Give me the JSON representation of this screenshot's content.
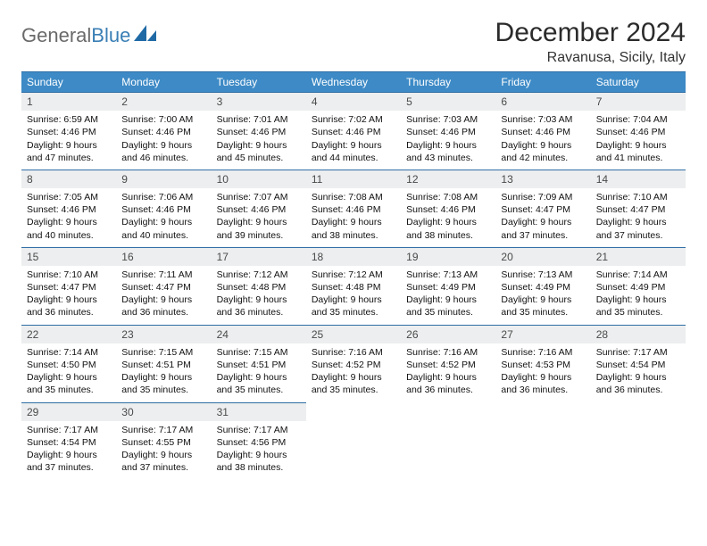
{
  "brand": {
    "word1": "General",
    "word2": "Blue"
  },
  "title": "December 2024",
  "location": "Ravanusa, Sicily, Italy",
  "colors": {
    "header_bg": "#3d8ac6",
    "header_text": "#ffffff",
    "daynum_bg": "#eceeef",
    "divider": "#2f6ea5",
    "logo_gray": "#6a6a6a",
    "logo_blue": "#3a7fb5"
  },
  "typography": {
    "title_fontsize": 30,
    "location_fontsize": 16,
    "dayhead_fontsize": 12,
    "cell_fontsize": 10.5
  },
  "day_headers": [
    "Sunday",
    "Monday",
    "Tuesday",
    "Wednesday",
    "Thursday",
    "Friday",
    "Saturday"
  ],
  "days": [
    {
      "n": "1",
      "sunrise": "Sunrise: 6:59 AM",
      "sunset": "Sunset: 4:46 PM",
      "day1": "Daylight: 9 hours",
      "day2": "and 47 minutes."
    },
    {
      "n": "2",
      "sunrise": "Sunrise: 7:00 AM",
      "sunset": "Sunset: 4:46 PM",
      "day1": "Daylight: 9 hours",
      "day2": "and 46 minutes."
    },
    {
      "n": "3",
      "sunrise": "Sunrise: 7:01 AM",
      "sunset": "Sunset: 4:46 PM",
      "day1": "Daylight: 9 hours",
      "day2": "and 45 minutes."
    },
    {
      "n": "4",
      "sunrise": "Sunrise: 7:02 AM",
      "sunset": "Sunset: 4:46 PM",
      "day1": "Daylight: 9 hours",
      "day2": "and 44 minutes."
    },
    {
      "n": "5",
      "sunrise": "Sunrise: 7:03 AM",
      "sunset": "Sunset: 4:46 PM",
      "day1": "Daylight: 9 hours",
      "day2": "and 43 minutes."
    },
    {
      "n": "6",
      "sunrise": "Sunrise: 7:03 AM",
      "sunset": "Sunset: 4:46 PM",
      "day1": "Daylight: 9 hours",
      "day2": "and 42 minutes."
    },
    {
      "n": "7",
      "sunrise": "Sunrise: 7:04 AM",
      "sunset": "Sunset: 4:46 PM",
      "day1": "Daylight: 9 hours",
      "day2": "and 41 minutes."
    },
    {
      "n": "8",
      "sunrise": "Sunrise: 7:05 AM",
      "sunset": "Sunset: 4:46 PM",
      "day1": "Daylight: 9 hours",
      "day2": "and 40 minutes."
    },
    {
      "n": "9",
      "sunrise": "Sunrise: 7:06 AM",
      "sunset": "Sunset: 4:46 PM",
      "day1": "Daylight: 9 hours",
      "day2": "and 40 minutes."
    },
    {
      "n": "10",
      "sunrise": "Sunrise: 7:07 AM",
      "sunset": "Sunset: 4:46 PM",
      "day1": "Daylight: 9 hours",
      "day2": "and 39 minutes."
    },
    {
      "n": "11",
      "sunrise": "Sunrise: 7:08 AM",
      "sunset": "Sunset: 4:46 PM",
      "day1": "Daylight: 9 hours",
      "day2": "and 38 minutes."
    },
    {
      "n": "12",
      "sunrise": "Sunrise: 7:08 AM",
      "sunset": "Sunset: 4:46 PM",
      "day1": "Daylight: 9 hours",
      "day2": "and 38 minutes."
    },
    {
      "n": "13",
      "sunrise": "Sunrise: 7:09 AM",
      "sunset": "Sunset: 4:47 PM",
      "day1": "Daylight: 9 hours",
      "day2": "and 37 minutes."
    },
    {
      "n": "14",
      "sunrise": "Sunrise: 7:10 AM",
      "sunset": "Sunset: 4:47 PM",
      "day1": "Daylight: 9 hours",
      "day2": "and 37 minutes."
    },
    {
      "n": "15",
      "sunrise": "Sunrise: 7:10 AM",
      "sunset": "Sunset: 4:47 PM",
      "day1": "Daylight: 9 hours",
      "day2": "and 36 minutes."
    },
    {
      "n": "16",
      "sunrise": "Sunrise: 7:11 AM",
      "sunset": "Sunset: 4:47 PM",
      "day1": "Daylight: 9 hours",
      "day2": "and 36 minutes."
    },
    {
      "n": "17",
      "sunrise": "Sunrise: 7:12 AM",
      "sunset": "Sunset: 4:48 PM",
      "day1": "Daylight: 9 hours",
      "day2": "and 36 minutes."
    },
    {
      "n": "18",
      "sunrise": "Sunrise: 7:12 AM",
      "sunset": "Sunset: 4:48 PM",
      "day1": "Daylight: 9 hours",
      "day2": "and 35 minutes."
    },
    {
      "n": "19",
      "sunrise": "Sunrise: 7:13 AM",
      "sunset": "Sunset: 4:49 PM",
      "day1": "Daylight: 9 hours",
      "day2": "and 35 minutes."
    },
    {
      "n": "20",
      "sunrise": "Sunrise: 7:13 AM",
      "sunset": "Sunset: 4:49 PM",
      "day1": "Daylight: 9 hours",
      "day2": "and 35 minutes."
    },
    {
      "n": "21",
      "sunrise": "Sunrise: 7:14 AM",
      "sunset": "Sunset: 4:49 PM",
      "day1": "Daylight: 9 hours",
      "day2": "and 35 minutes."
    },
    {
      "n": "22",
      "sunrise": "Sunrise: 7:14 AM",
      "sunset": "Sunset: 4:50 PM",
      "day1": "Daylight: 9 hours",
      "day2": "and 35 minutes."
    },
    {
      "n": "23",
      "sunrise": "Sunrise: 7:15 AM",
      "sunset": "Sunset: 4:51 PM",
      "day1": "Daylight: 9 hours",
      "day2": "and 35 minutes."
    },
    {
      "n": "24",
      "sunrise": "Sunrise: 7:15 AM",
      "sunset": "Sunset: 4:51 PM",
      "day1": "Daylight: 9 hours",
      "day2": "and 35 minutes."
    },
    {
      "n": "25",
      "sunrise": "Sunrise: 7:16 AM",
      "sunset": "Sunset: 4:52 PM",
      "day1": "Daylight: 9 hours",
      "day2": "and 35 minutes."
    },
    {
      "n": "26",
      "sunrise": "Sunrise: 7:16 AM",
      "sunset": "Sunset: 4:52 PM",
      "day1": "Daylight: 9 hours",
      "day2": "and 36 minutes."
    },
    {
      "n": "27",
      "sunrise": "Sunrise: 7:16 AM",
      "sunset": "Sunset: 4:53 PM",
      "day1": "Daylight: 9 hours",
      "day2": "and 36 minutes."
    },
    {
      "n": "28",
      "sunrise": "Sunrise: 7:17 AM",
      "sunset": "Sunset: 4:54 PM",
      "day1": "Daylight: 9 hours",
      "day2": "and 36 minutes."
    },
    {
      "n": "29",
      "sunrise": "Sunrise: 7:17 AM",
      "sunset": "Sunset: 4:54 PM",
      "day1": "Daylight: 9 hours",
      "day2": "and 37 minutes."
    },
    {
      "n": "30",
      "sunrise": "Sunrise: 7:17 AM",
      "sunset": "Sunset: 4:55 PM",
      "day1": "Daylight: 9 hours",
      "day2": "and 37 minutes."
    },
    {
      "n": "31",
      "sunrise": "Sunrise: 7:17 AM",
      "sunset": "Sunset: 4:56 PM",
      "day1": "Daylight: 9 hours",
      "day2": "and 38 minutes."
    }
  ]
}
